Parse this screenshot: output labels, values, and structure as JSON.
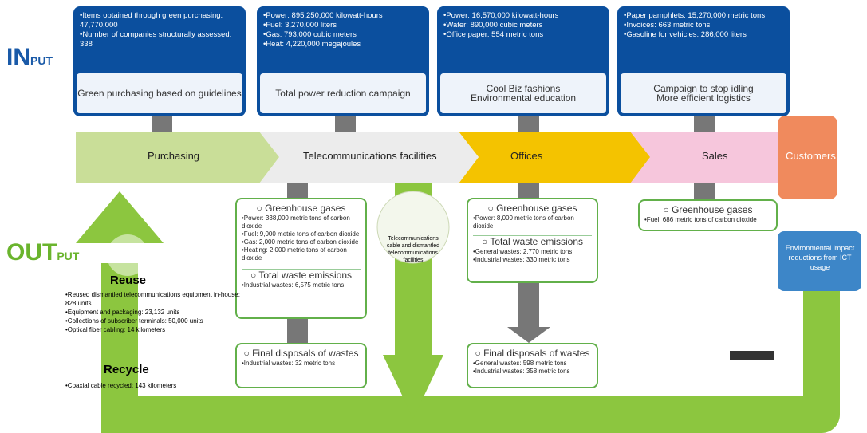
{
  "input_label": {
    "main": "IN",
    "sub": "PUT"
  },
  "output_label": {
    "main": "OUT",
    "sub": "PUT"
  },
  "inputs": [
    {
      "items": [
        "•Items obtained through green purchasing: 47,770,000",
        "•Number of companies structurally assessed: 338"
      ],
      "caption": [
        "Green purchasing based on guidelines"
      ]
    },
    {
      "items": [
        "•Power: 895,250,000 kilowatt-hours",
        "•Fuel: 3,270,000 liters",
        "•Gas: 793,000 cubic meters",
        "•Heat: 4,220,000 megajoules"
      ],
      "caption": [
        "Total power reduction campaign"
      ]
    },
    {
      "items": [
        "•Power: 16,570,000 kilowatt-hours",
        "•Water: 890,000 cubic meters",
        "•Office paper: 554 metric tons"
      ],
      "caption": [
        "Cool Biz fashions",
        "Environmental education"
      ]
    },
    {
      "items": [
        "•Paper pamphlets: 15,270,000 metric tons",
        "•Invoices: 663 metric tons",
        "•Gasoline for vehicles: 286,000 liters"
      ],
      "caption": [
        "Campaign to stop idling",
        "More efficient logistics"
      ]
    }
  ],
  "stages": [
    "Purchasing",
    "Telecommunications facilities",
    "Offices",
    "Sales",
    "Customers"
  ],
  "telecom_output": {
    "ghg_title": "○ Greenhouse gases",
    "ghg": [
      "•Power: 338,000 metric tons of carbon dioxide",
      "•Fuel: 9,000 metric tons of carbon dioxide",
      "•Gas: 2,000 metric tons of carbon dioxide",
      "•Heating: 2,000 metric tons of carbon dioxide"
    ],
    "waste_title": "○ Total waste emissions",
    "waste": [
      "•Industrial wastes: 6,575 metric tons"
    ],
    "final_title": "○ Final disposals of wastes",
    "final": [
      "•Industrial wastes: 32 metric tons"
    ]
  },
  "cable": "Telecommunications cable and dismantled telecommunications facilities",
  "office_output": {
    "ghg_title": "○ Greenhouse gases",
    "ghg": [
      "•Power: 8,000 metric tons of carbon dioxide"
    ],
    "waste_title": "○ Total waste emissions",
    "waste": [
      "•General wastes: 2,770 metric tons",
      "•Industrial wastes: 330 metric tons"
    ],
    "final_title": "○ Final disposals of wastes",
    "final": [
      "•General wastes: 598 metric tons",
      "•Industrial wastes: 358 metric tons"
    ]
  },
  "sales_output": {
    "ghg_title": "○ Greenhouse gases",
    "ghg": [
      "•Fuel: 686 metric tons of carbon dioxide"
    ]
  },
  "customers_note": "Environmental impact reductions from ICT usage",
  "collections": "Collections of subscriber terminals",
  "reuse": {
    "title": "Reuse",
    "items": [
      "•Reused dismantled telecommunications equipment in-house: 828 units",
      "•Equipment and packaging: 23,132 units",
      "•Collections of subscriber terminals: 50,000 units",
      "•Optical fiber cabling: 14 kilometers"
    ]
  },
  "recycle": {
    "title": "Recycle",
    "items": [
      "•Coaxial cable recycled: 143 kilometers"
    ]
  }
}
